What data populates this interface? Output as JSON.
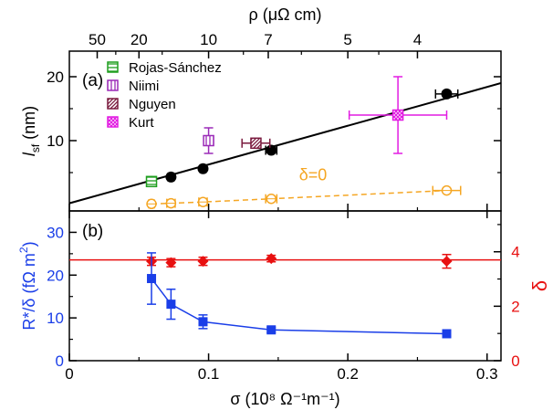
{
  "chart_data": [
    {
      "panel": "(a)",
      "type": "scatter",
      "top_axis": {
        "label": "ρ (μΩ cm)",
        "tick_labels": [
          "50",
          "20",
          "10",
          "7",
          "5",
          "4"
        ],
        "tick_values_sigma": [
          0.02,
          0.05,
          0.1,
          0.142857,
          0.2,
          0.25
        ]
      },
      "ylabel": {
        "italic": "l",
        "sub": "sf",
        "rest": " (nm)"
      },
      "ylim": [
        -1,
        24
      ],
      "yticks": [
        10,
        20
      ],
      "xlim": [
        0,
        0.31
      ],
      "annotation": "δ=0",
      "series": [
        {
          "kind": "black-points",
          "color": "#000000",
          "x": [
            0.059,
            0.073,
            0.096,
            0.145,
            0.271
          ],
          "y": [
            3.6,
            4.3,
            5.6,
            8.5,
            17.3
          ],
          "xerr": [
            0.002,
            0.002,
            0.002,
            0.004,
            0.008
          ]
        },
        {
          "kind": "fit-line",
          "color": "#000000",
          "x": [
            0.0,
            0.31
          ],
          "y": [
            0.2,
            19.0
          ]
        },
        {
          "kind": "delta-zero",
          "color": "#f5a623",
          "x": [
            0.059,
            0.073,
            0.096,
            0.145,
            0.271
          ],
          "y": [
            0.1,
            0.2,
            0.4,
            0.9,
            2.2
          ],
          "xerr": [
            0.002,
            0.003,
            0.003,
            0.004,
            0.01
          ]
        },
        {
          "name": "Rojas-Sánchez",
          "color": "#1e9e1e",
          "pattern": "h",
          "x": [
            0.059
          ],
          "y": [
            3.6
          ]
        },
        {
          "name": "Niimi",
          "color": "#9b2ab8",
          "pattern": "v",
          "x": [
            0.1
          ],
          "y": [
            10.0
          ],
          "yerr": [
            2.0
          ]
        },
        {
          "name": "Nguyen",
          "color": "#7a1a3e",
          "pattern": "d",
          "x": [
            0.134
          ],
          "y": [
            9.6
          ],
          "xerr": [
            0.01
          ]
        },
        {
          "name": "Kurt",
          "color": "#e21ce2",
          "pattern": "x",
          "x": [
            0.236
          ],
          "y": [
            14.0
          ],
          "xerr": [
            0.035
          ],
          "yerr": [
            6.0
          ]
        }
      ]
    },
    {
      "panel": "(b)",
      "type": "line",
      "xlabel": "σ (10⁸ Ω⁻¹m⁻¹)",
      "xlim": [
        0,
        0.31
      ],
      "xticks": [
        0,
        0.1,
        0.2,
        0.3
      ],
      "xtick_labels": [
        "0",
        "0.1",
        "0.2",
        "0.3"
      ],
      "ylabel_left": {
        "text": "R*/δ (fΩ m",
        "sup": "2",
        "close": ")"
      },
      "ylim_left": [
        0,
        35
      ],
      "yticks_left": [
        0,
        10,
        20,
        30
      ],
      "ylabel_right": "δ",
      "ylim_right": [
        0,
        5.5
      ],
      "yticks_right": [
        0,
        2,
        4
      ],
      "series": [
        {
          "name": "R*/δ",
          "axis": "left",
          "color": "#1a3ee8",
          "x": [
            0.059,
            0.073,
            0.096,
            0.145,
            0.271
          ],
          "y": [
            19.2,
            13.2,
            9.1,
            7.2,
            6.3
          ],
          "yerr": [
            6.0,
            3.5,
            1.6,
            0.6,
            0.6
          ]
        },
        {
          "name": "δ",
          "axis": "right",
          "color": "#e81010",
          "x": [
            0.059,
            0.073,
            0.096,
            0.145,
            0.271
          ],
          "y": [
            3.65,
            3.6,
            3.65,
            3.75,
            3.65
          ],
          "yerr": [
            0.15,
            0.15,
            0.15,
            0.12,
            0.25
          ]
        },
        {
          "name": "δ-mean",
          "axis": "right",
          "color": "#e81010",
          "kind": "hline",
          "y": [
            3.7
          ]
        }
      ]
    }
  ]
}
